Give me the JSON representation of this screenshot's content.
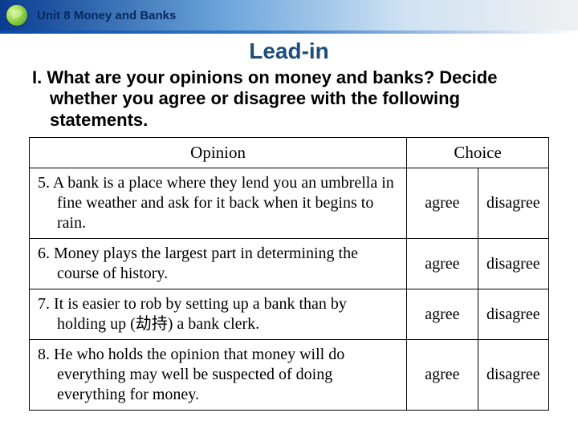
{
  "header": {
    "unit_title": "Unit 8 Money and Banks",
    "leadin": "Lead-in"
  },
  "instruction": "I. What are your opinions on money and banks? Decide whether you agree or disagree with the following statements.",
  "table": {
    "headers": {
      "opinion": "Opinion",
      "choice": "Choice"
    },
    "choice_labels": {
      "agree": "agree",
      "disagree": "disagree"
    },
    "rows": [
      {
        "text": "5. A bank is a place where they lend you an umbrella in fine weather and ask for it back when it begins to rain."
      },
      {
        "text": "6. Money plays the largest part in determining the course of history."
      },
      {
        "text": "7. It is easier to rob by setting up a bank than by holding up (劫持) a bank clerk."
      },
      {
        "text": "8. He who holds the opinion that money will do everything may well be suspected of doing everything for money."
      }
    ]
  },
  "colors": {
    "heading": "#1f4e79",
    "header_grad_a": "#0a3d91",
    "header_grad_b": "#6fa8dc"
  }
}
